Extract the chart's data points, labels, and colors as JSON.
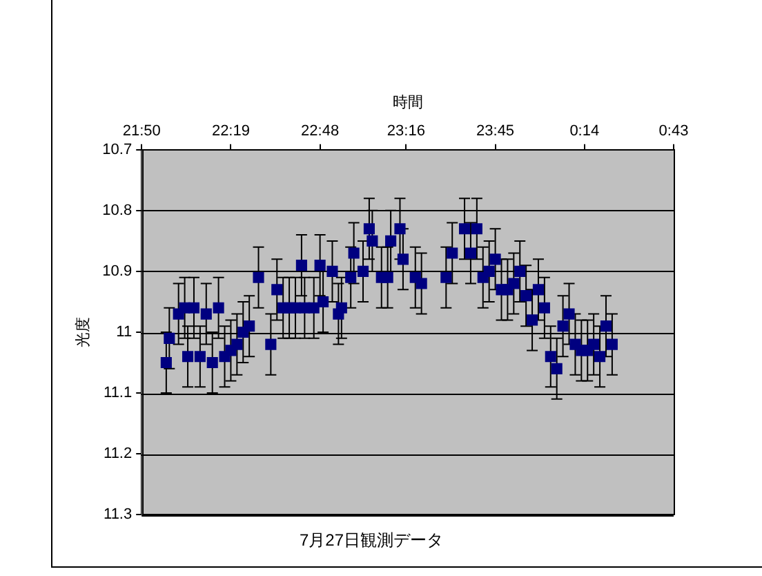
{
  "chart_data": {
    "type": "scatter",
    "title": "7月27日観測データ",
    "xlabel": "時間",
    "ylabel": "光度",
    "x": [
      "--07-27T21:58",
      "--07-27T21:59",
      "--07-27T22:02",
      "--07-27T22:04",
      "--07-27T22:05",
      "--07-27T22:07",
      "--07-27T22:09",
      "--07-27T22:11",
      "--07-27T22:13",
      "--07-27T22:15",
      "--07-27T22:17",
      "--07-27T22:19",
      "--07-27T22:21",
      "--07-27T22:23",
      "--07-27T22:25",
      "--07-27T22:28",
      "--07-27T22:32",
      "--07-27T22:34",
      "--07-27T22:36",
      "--07-27T22:38",
      "--07-27T22:40",
      "--07-27T22:42",
      "--07-27T22:43",
      "--07-27T22:46",
      "--07-27T22:48",
      "--07-27T22:49",
      "--07-27T22:52",
      "--07-27T22:54",
      "--07-27T22:55",
      "--07-27T22:58",
      "--07-27T22:59",
      "--07-27T23:02",
      "--07-27T23:04",
      "--07-27T23:05",
      "--07-27T23:08",
      "--07-27T23:10",
      "--07-27T23:11",
      "--07-27T23:14",
      "--07-27T23:15",
      "--07-27T23:19",
      "--07-27T23:21",
      "--07-27T23:29",
      "--07-27T23:31",
      "--07-27T23:35",
      "--07-27T23:37",
      "--07-27T23:39",
      "--07-27T23:41",
      "--07-27T23:43",
      "--07-27T23:45",
      "--07-27T23:47",
      "--07-27T23:49",
      "--07-27T23:51",
      "--07-27T23:53",
      "--07-27T23:55",
      "--07-27T23:57",
      "--07-27T23:59",
      "--07-28T00:01",
      "--07-28T00:03",
      "--07-28T00:05",
      "--07-28T00:07",
      "--07-28T00:09",
      "--07-28T00:11",
      "--07-28T00:13",
      "--07-28T00:15",
      "--07-28T00:17",
      "--07-28T00:19",
      "--07-28T00:21",
      "--07-28T00:23"
    ],
    "series": [
      {
        "color": "#000080",
        "values": [
          11.05,
          11.01,
          10.97,
          10.96,
          11.04,
          10.96,
          11.04,
          10.97,
          11.05,
          10.96,
          11.04,
          11.03,
          11.02,
          11.0,
          10.99,
          10.91,
          11.02,
          10.93,
          10.96,
          10.96,
          10.96,
          10.89,
          10.96,
          10.96,
          10.89,
          10.95,
          10.9,
          10.97,
          10.96,
          10.91,
          10.87,
          10.9,
          10.83,
          10.85,
          10.91,
          10.91,
          10.85,
          10.83,
          10.88,
          10.91,
          10.92,
          10.91,
          10.87,
          10.83,
          10.87,
          10.83,
          10.91,
          10.9,
          10.88,
          10.93,
          10.93,
          10.92,
          10.9,
          10.94,
          10.98,
          10.93,
          10.96,
          11.04,
          11.06,
          10.99,
          10.97,
          11.02,
          11.03,
          11.03,
          11.02,
          11.04,
          10.99,
          11.02
        ],
        "errors": [
          0.05,
          0.05,
          0.05,
          0.05,
          0.05,
          0.05,
          0.05,
          0.05,
          0.05,
          0.05,
          0.05,
          0.05,
          0.05,
          0.05,
          0.05,
          0.05,
          0.05,
          0.05,
          0.05,
          0.05,
          0.05,
          0.05,
          0.05,
          0.05,
          0.05,
          0.05,
          0.05,
          0.05,
          0.05,
          0.05,
          0.05,
          0.05,
          0.05,
          0.05,
          0.05,
          0.05,
          0.05,
          0.05,
          0.05,
          0.05,
          0.05,
          0.05,
          0.05,
          0.05,
          0.05,
          0.05,
          0.05,
          0.05,
          0.05,
          0.05,
          0.05,
          0.05,
          0.05,
          0.05,
          0.05,
          0.05,
          0.05,
          0.05,
          0.05,
          0.05,
          0.05,
          0.05,
          0.05,
          0.05,
          0.05,
          0.05,
          0.05,
          0.05
        ]
      }
    ],
    "xlim": [
      "--07-27T21:50",
      "--07-28T00:43"
    ],
    "xticks": [
      {
        "value": "--07-27T21:50",
        "label": "21:50"
      },
      {
        "value": "--07-27T22:19",
        "label": "22:19"
      },
      {
        "value": "--07-27T22:48",
        "label": "22:48"
      },
      {
        "value": "--07-27T23:16",
        "label": "23:16"
      },
      {
        "value": "--07-27T23:45",
        "label": "23:45"
      },
      {
        "value": "--07-28T00:14",
        "label": "0:14"
      },
      {
        "value": "--07-28T00:43",
        "label": "0:43"
      }
    ],
    "ylim": [
      11.3,
      10.7
    ],
    "yticks": [
      10.7,
      10.8,
      10.9,
      11,
      11.1,
      11.2,
      11.3
    ],
    "grid": "y",
    "marker": "square",
    "legend": false
  }
}
